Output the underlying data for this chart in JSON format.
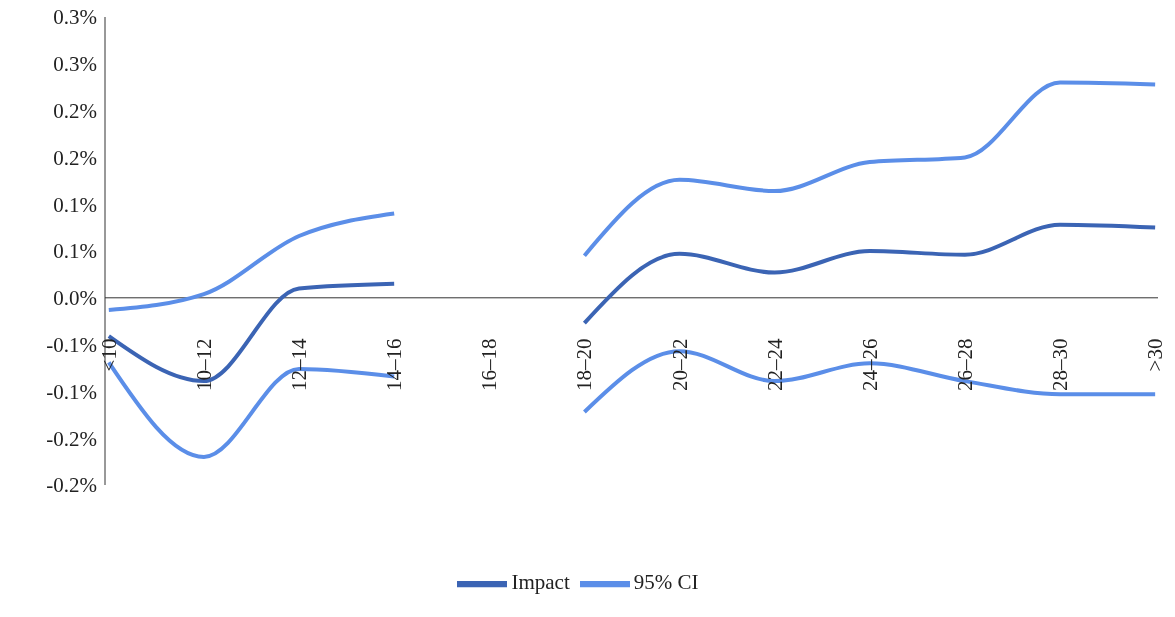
{
  "chart_data": {
    "type": "line",
    "categories": [
      "<10",
      "10–12",
      "12–14",
      "14–16",
      "16–18",
      "18–20",
      "20–22",
      "22–24",
      "24–26",
      "26–28",
      "28–30",
      ">30"
    ],
    "series": [
      {
        "name": "Impact",
        "color": "#3b64b4",
        "values": [
          -0.041,
          -0.089,
          0.01,
          0.015,
          null,
          -0.027,
          0.047,
          0.027,
          0.05,
          0.046,
          0.078,
          0.075
        ]
      },
      {
        "name": "95% CI",
        "color": "#5b8ee8",
        "values": [
          -0.013,
          0.004,
          0.066,
          0.09,
          null,
          0.045,
          0.126,
          0.114,
          0.145,
          0.15,
          0.23,
          0.228
        ]
      },
      {
        "color": "#5b8ee8",
        "values": [
          -0.069,
          -0.17,
          -0.076,
          -0.084,
          null,
          -0.122,
          -0.057,
          -0.089,
          -0.07,
          -0.089,
          -0.103,
          -0.103
        ]
      }
    ],
    "ylim": [
      -0.2,
      0.3
    ],
    "yticks": [
      {
        "value": -0.2,
        "label": "-0.2%"
      },
      {
        "value": -0.15,
        "label": "-0.2%"
      },
      {
        "value": -0.1,
        "label": "-0.1%"
      },
      {
        "value": -0.05,
        "label": "-0.1%"
      },
      {
        "value": 0,
        "label": "0.0%"
      },
      {
        "value": 0.05,
        "label": "0.1%"
      },
      {
        "value": 0.1,
        "label": "0.1%"
      },
      {
        "value": 0.15,
        "label": "0.2%"
      },
      {
        "value": 0.2,
        "label": "0.2%"
      },
      {
        "value": 0.25,
        "label": "0.3%"
      },
      {
        "value": 0.3,
        "label": "0.3%"
      }
    ],
    "grid": false,
    "legend": "bottom",
    "marker": "none",
    "line_style": "solid"
  }
}
